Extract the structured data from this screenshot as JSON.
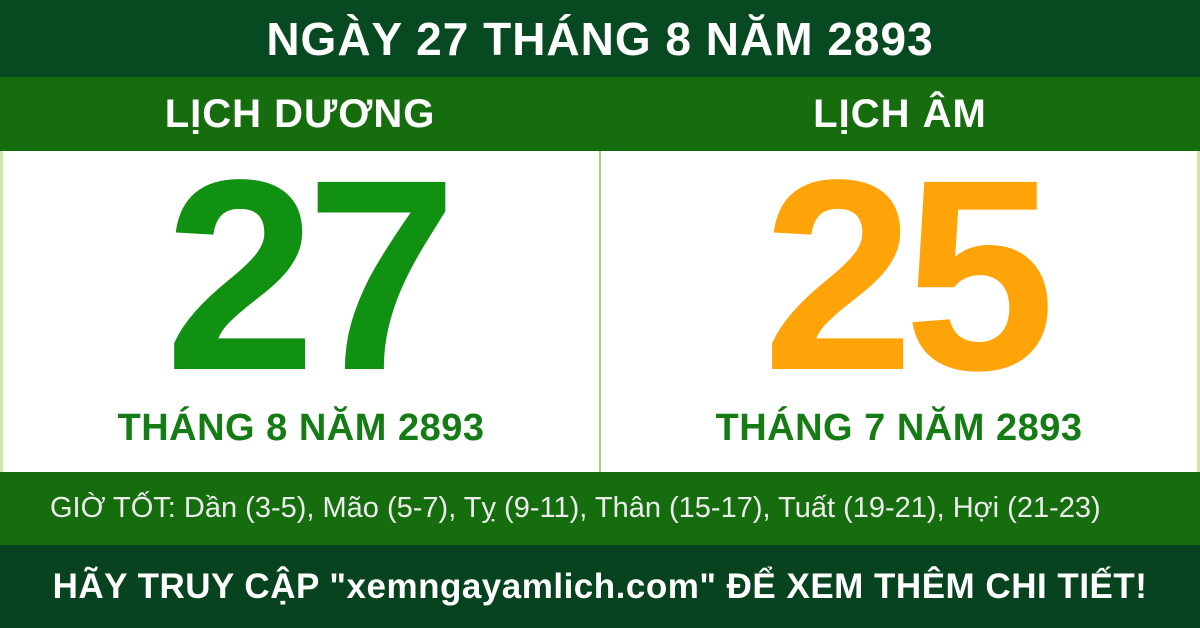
{
  "banner": {
    "title": "NGÀY 27 THÁNG 8 NĂM 2893"
  },
  "calendar_header": {
    "solar_label": "LỊCH DƯƠNG",
    "lunar_label": "LỊCH ÂM"
  },
  "solar": {
    "day": "27",
    "month_year": "THÁNG 8 NĂM 2893"
  },
  "lunar": {
    "day": "25",
    "month_year": "THÁNG 7 NĂM 2893"
  },
  "good_hours": {
    "label": "GIỜ TỐT:",
    "hours": [
      "Dần (3-5)",
      "Mão (5-7)",
      "Tỵ (9-11)",
      "Thân (15-17)",
      "Tuất (19-21)",
      "Hợi (21-23)"
    ],
    "text": "GIỜ TỐT: Dần (3-5), Mão (5-7), Tỵ (9-11), Thân (15-17), Tuất (19-21), Hợi (21-23)"
  },
  "footer": {
    "text": "HÃY TRUY CẬP \"xemngayamlich.com\" ĐỂ XEM THÊM CHI TIẾT!",
    "website": "xemngayamlich.com"
  },
  "colors": {
    "banner_dark_green": "#074920",
    "strip_green": "#156d0e",
    "solar_day_green": "#119111",
    "month_text_green": "#157c15",
    "lunar_day_orange": "#ffa408",
    "divider_light_green": "#a8d57b",
    "panel_edge_light_green": "#cfe5a8",
    "good_hours_text_color": "#ededed"
  }
}
